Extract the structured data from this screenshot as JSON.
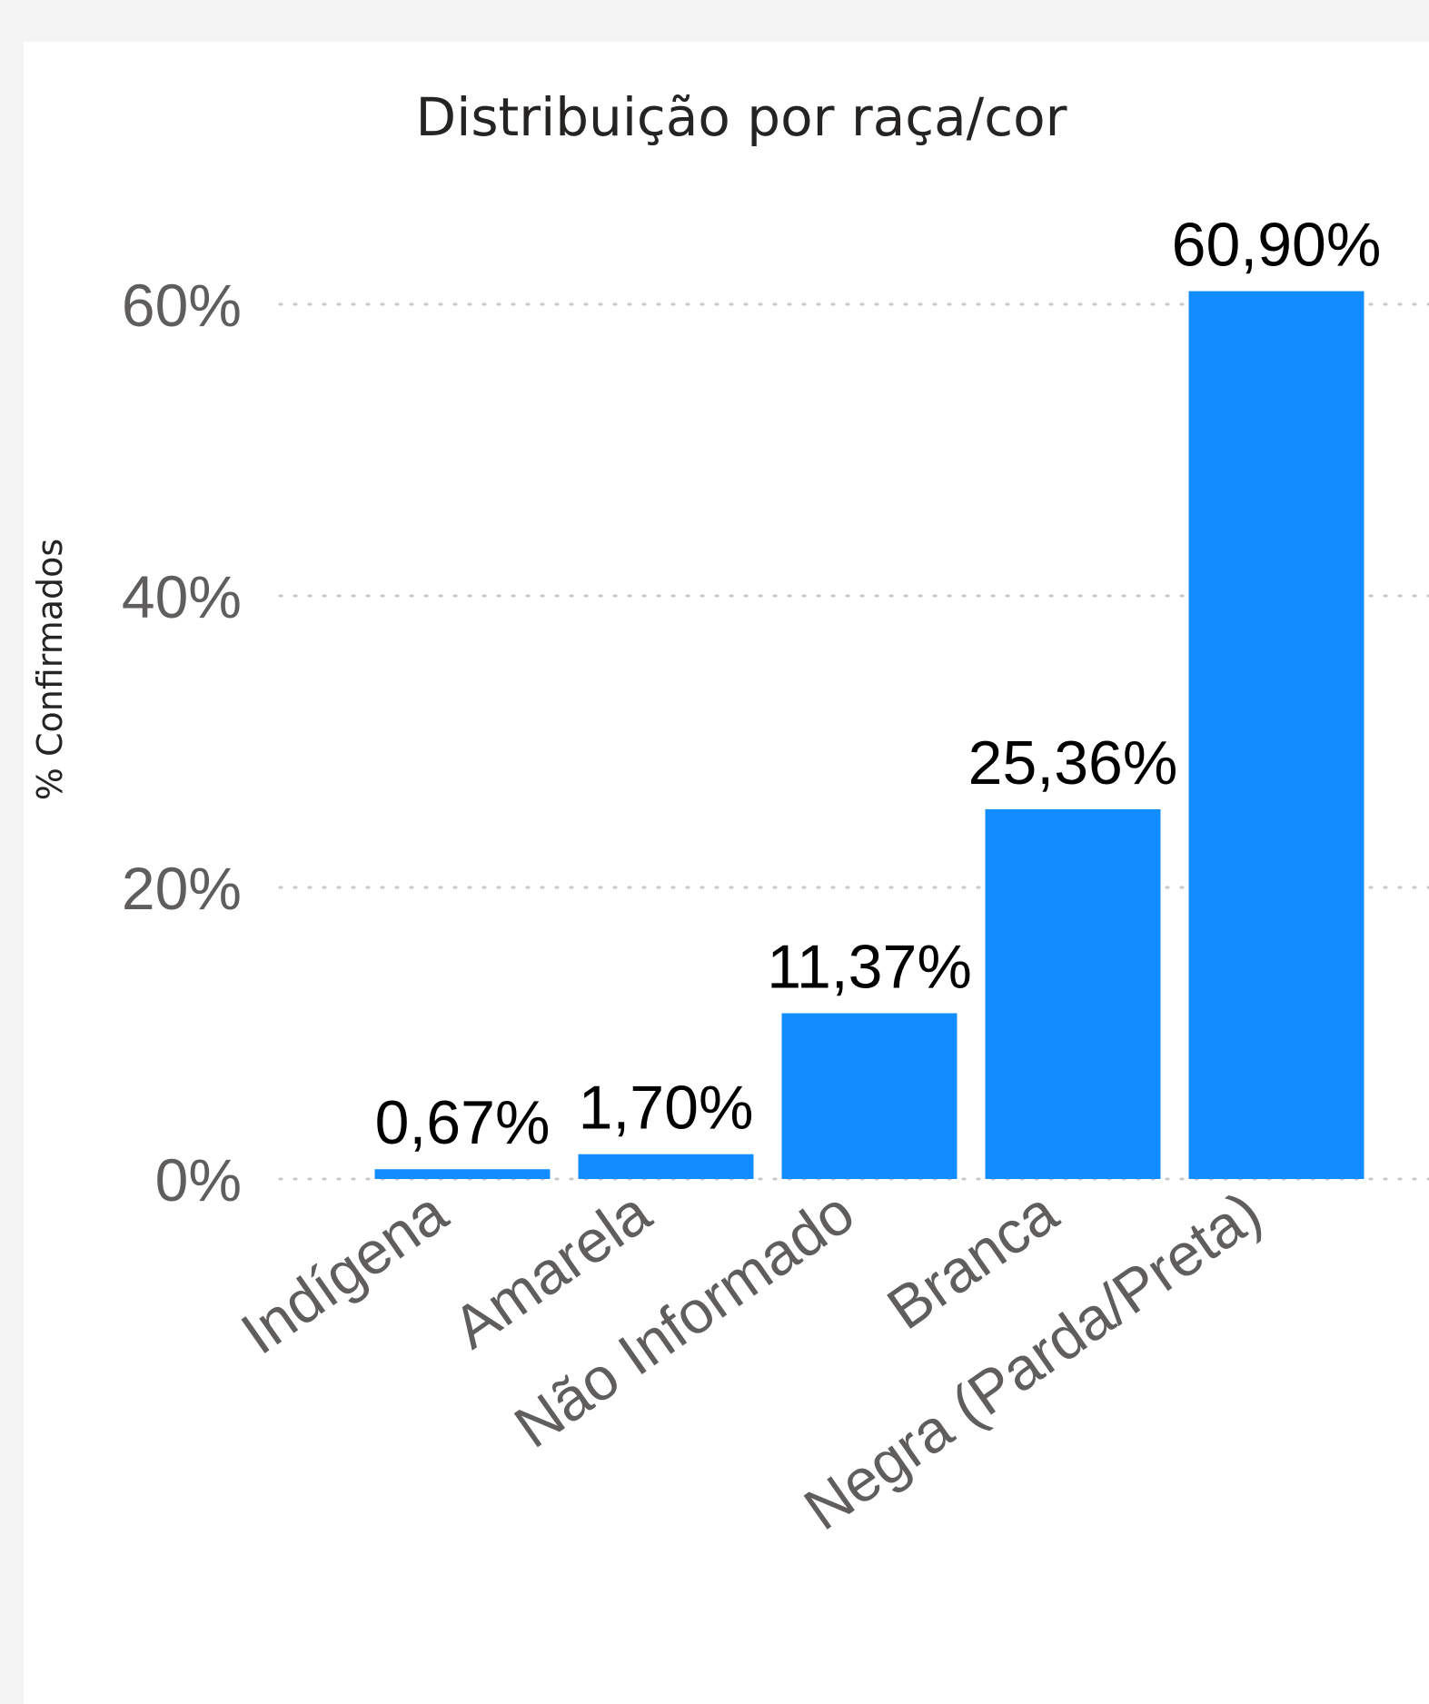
{
  "chart_data": {
    "type": "bar",
    "title": "Distribuição por raça/cor",
    "ylabel": "% Confirmados",
    "xlabel": "",
    "categories": [
      "Indígena",
      "Amarela",
      "Não Informado",
      "Branca",
      "Negra (Parda/Preta)"
    ],
    "values": [
      0.67,
      1.7,
      11.37,
      25.36,
      60.9
    ],
    "data_labels": [
      "0,67%",
      "1,70%",
      "11,37%",
      "25,36%",
      "60,90%"
    ],
    "yticks": [
      0,
      20,
      40,
      60
    ],
    "ytick_labels": [
      "0%",
      "20%",
      "40%",
      "60%"
    ],
    "ylim": [
      0,
      65
    ],
    "grid": true,
    "bar_color": "#118dff"
  }
}
